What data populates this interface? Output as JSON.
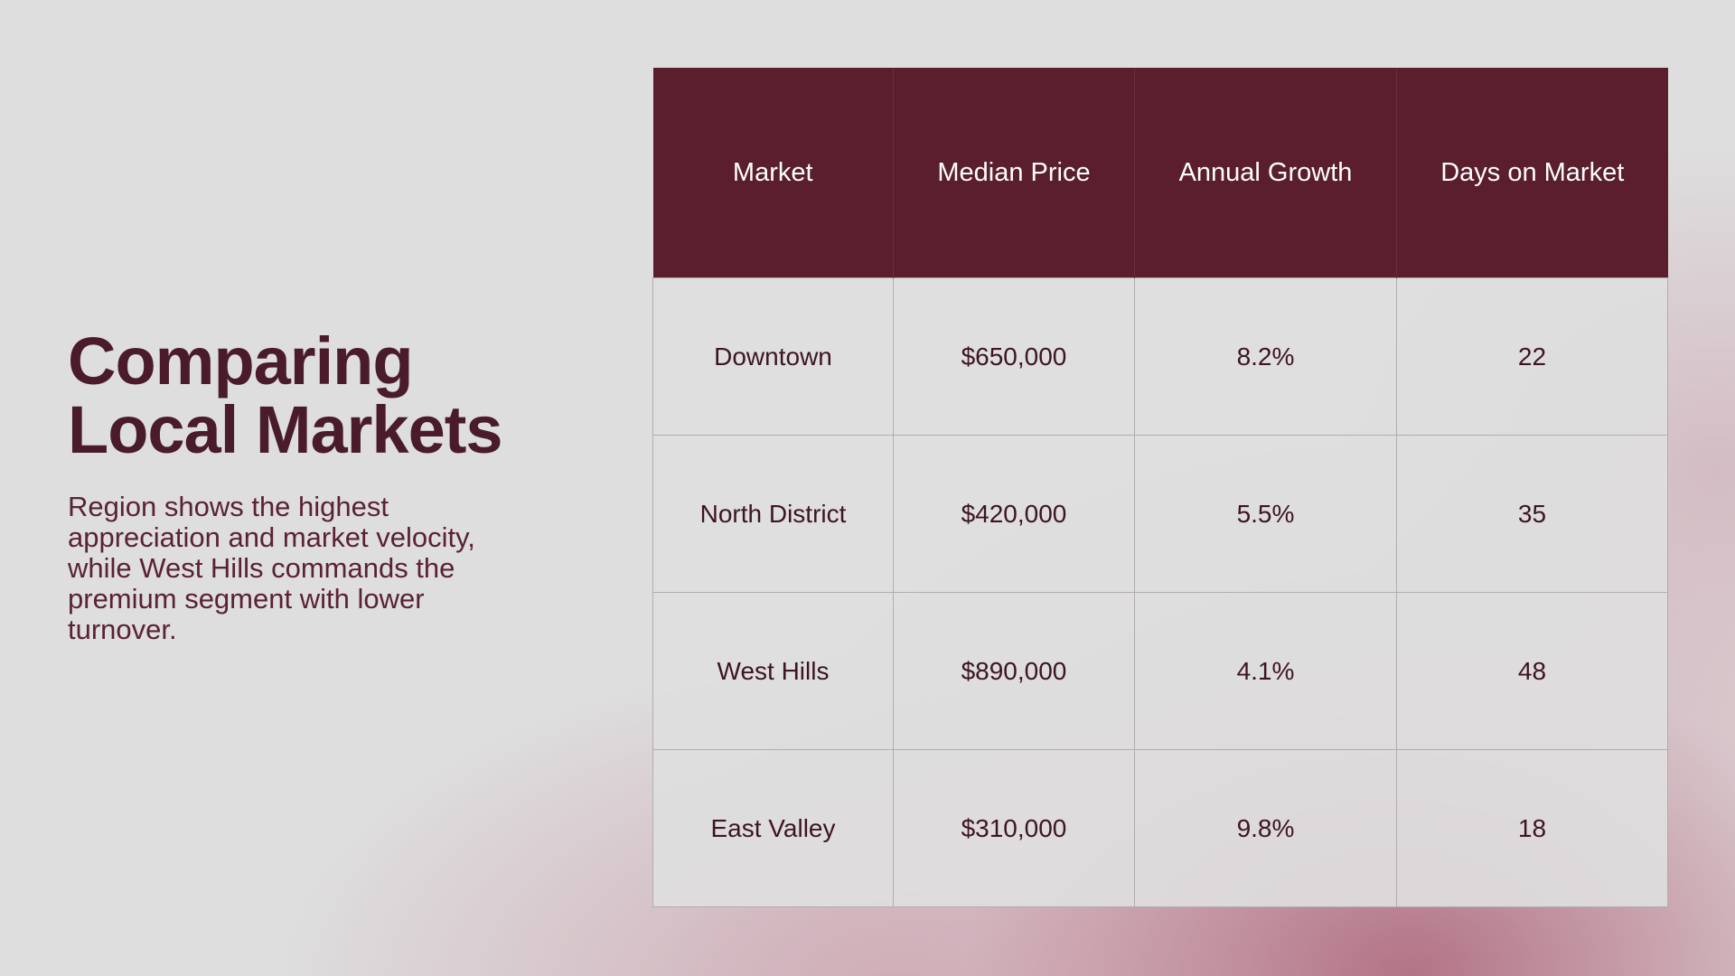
{
  "slide": {
    "title_line1": "Comparing",
    "title_line2": "Local Markets",
    "subtitle": "Region shows the highest appreciation and market velocity, while West Hills commands the premium segment with lower turnover."
  },
  "table": {
    "headers": [
      "Market",
      "Median Price",
      "Annual Growth",
      "Days on Market"
    ],
    "rows": [
      [
        "Downtown",
        "$650,000",
        "8.2%",
        "22"
      ],
      [
        "North District",
        "$420,000",
        "5.5%",
        "35"
      ],
      [
        "West Hills",
        "$890,000",
        "4.1%",
        "48"
      ],
      [
        "East Valley",
        "$310,000",
        "9.8%",
        "18"
      ]
    ]
  },
  "colors": {
    "header_bg": "#5a1e2d",
    "title_text": "#4a1b2a",
    "background": "#dedede",
    "accent_glow": "#b06e82"
  }
}
